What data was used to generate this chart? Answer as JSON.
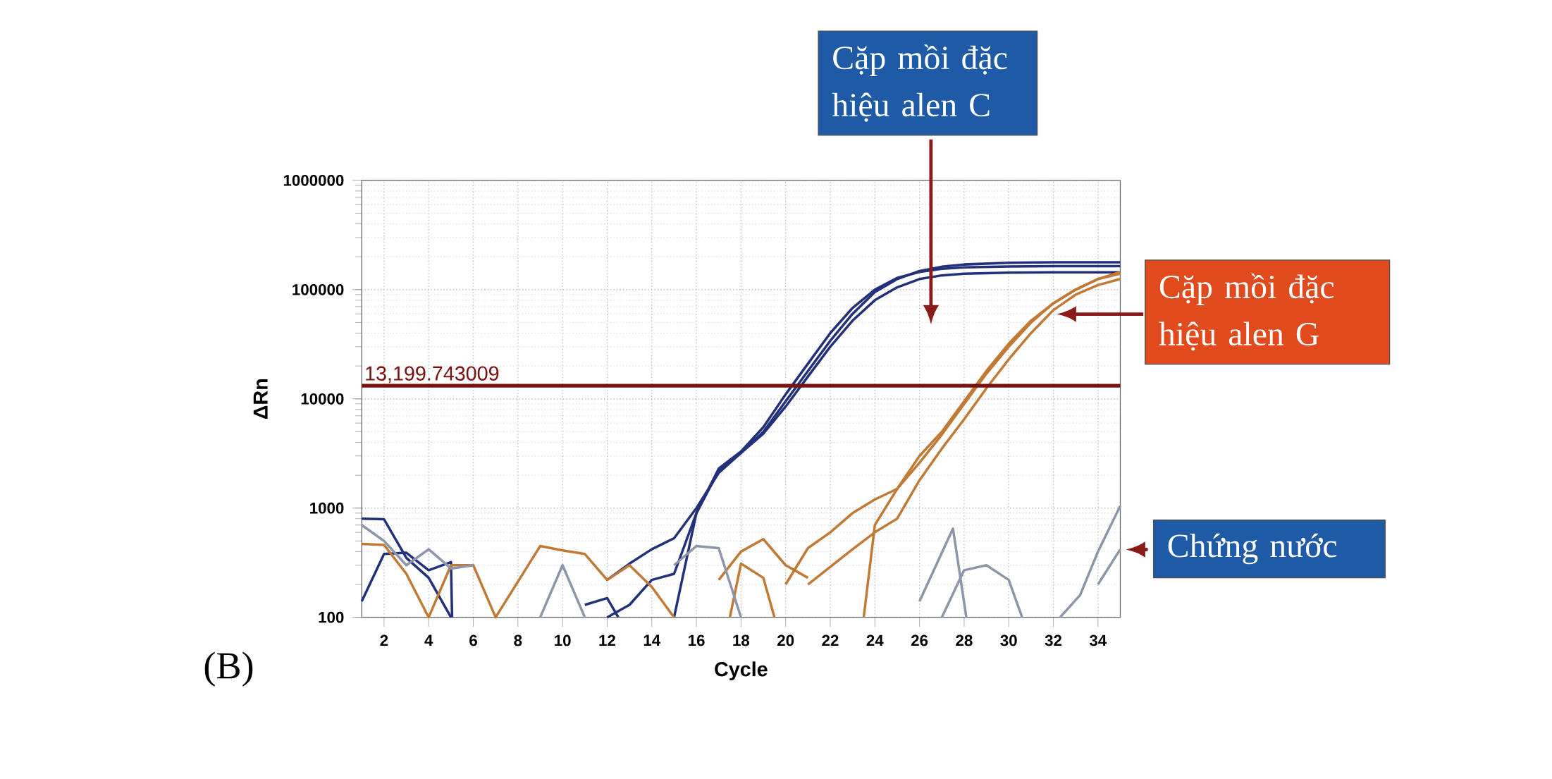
{
  "chart_data": {
    "type": "line",
    "xlabel": "Cycle",
    "ylabel": "ΔRn",
    "log": "y",
    "grid": true,
    "xlim": [
      1,
      35
    ],
    "xticks": [
      2,
      4,
      6,
      8,
      10,
      12,
      14,
      16,
      18,
      20,
      22,
      24,
      26,
      28,
      30,
      32,
      34
    ],
    "ylim": [
      100,
      1000000
    ],
    "yticks": [
      100,
      1000,
      10000,
      100000,
      1000000
    ],
    "ref_lines": [
      {
        "axis": "y",
        "value": 13199.743009,
        "label": "13,199.743009",
        "color": "#7a1010"
      }
    ],
    "annotations": [
      "Cặp mồi đặc hiệu alen C",
      "Cặp mồi đặc hiệu alen G",
      "Chứng nước",
      "(B)"
    ],
    "series": [
      {
        "type": "line",
        "color": "#23307a",
        "x": [
          12,
          13,
          14,
          15,
          16,
          17,
          18,
          19,
          20,
          21,
          22,
          23,
          24,
          25,
          26,
          27,
          28,
          30,
          32,
          35
        ],
        "values": [
          220,
          310,
          420,
          530,
          1000,
          2100,
          3200,
          5000,
          9500,
          18000,
          34000,
          60000,
          95000,
          125000,
          148000,
          162000,
          170000,
          176000,
          178000,
          178000
        ]
      },
      {
        "type": "line",
        "color": "#23307a",
        "x": [
          15,
          16,
          17,
          18,
          19,
          20,
          21,
          22,
          23,
          24,
          25,
          26,
          27,
          28,
          30,
          32,
          35
        ],
        "values": [
          100,
          900,
          2300,
          3300,
          5500,
          11000,
          21000,
          40000,
          68000,
          100000,
          128000,
          145000,
          155000,
          160000,
          163000,
          164000,
          164000
        ]
      },
      {
        "type": "line",
        "color": "#23307a",
        "x": [
          12,
          13,
          14,
          15,
          16,
          17,
          18,
          19,
          20,
          21,
          22,
          23,
          24,
          25,
          26,
          27,
          28,
          30,
          32,
          35
        ],
        "values": [
          100,
          130,
          220,
          250,
          900,
          2200,
          3200,
          4800,
          8500,
          16000,
          30000,
          52000,
          80000,
          105000,
          125000,
          135000,
          140000,
          143000,
          144000,
          144000
        ]
      },
      {
        "type": "line",
        "color": "#23307a",
        "x": [
          1,
          2,
          3,
          4,
          5
        ],
        "values": [
          800,
          790,
          350,
          230,
          100
        ]
      },
      {
        "type": "line",
        "color": "#23307a",
        "x": [
          1,
          2,
          3,
          4,
          5,
          5.05
        ],
        "values": [
          140,
          380,
          390,
          270,
          320,
          100
        ]
      },
      {
        "type": "line",
        "color": "#23307a",
        "x": [
          11,
          12,
          12.5
        ],
        "values": [
          130,
          150,
          100
        ]
      },
      {
        "type": "line",
        "color": "#c07a35",
        "x": [
          20,
          21,
          22,
          23,
          24,
          25,
          26,
          27,
          28,
          29,
          30,
          31,
          32,
          33,
          34,
          35
        ],
        "values": [
          200,
          430,
          600,
          900,
          1200,
          1500,
          3000,
          5000,
          9500,
          18000,
          32000,
          52000,
          75000,
          100000,
          125000,
          145000
        ]
      },
      {
        "type": "line",
        "color": "#c07a35",
        "x": [
          23.5,
          24,
          25,
          26,
          27,
          28,
          29,
          30,
          31,
          32,
          33,
          34,
          35
        ],
        "values": [
          100,
          700,
          1500,
          2600,
          4700,
          9000,
          17000,
          30000,
          50000,
          75000,
          100000,
          125000,
          140000
        ]
      },
      {
        "type": "line",
        "color": "#c07a35",
        "x": [
          21,
          22,
          23,
          24,
          25,
          26,
          27,
          28,
          29,
          30,
          31,
          32,
          33,
          34,
          35
        ],
        "values": [
          200,
          290,
          420,
          600,
          800,
          1800,
          3500,
          6500,
          12500,
          23000,
          40000,
          65000,
          90000,
          110000,
          125000
        ]
      },
      {
        "type": "line",
        "color": "#c07a35",
        "x": [
          1,
          2,
          3,
          4,
          5,
          6,
          7,
          9,
          10,
          11,
          12,
          13,
          14,
          15
        ],
        "values": [
          470,
          460,
          250,
          100,
          300,
          300,
          100,
          450,
          410,
          380,
          220,
          300,
          190,
          100
        ]
      },
      {
        "type": "line",
        "color": "#c07a35",
        "x": [
          17,
          18,
          19,
          20,
          21
        ],
        "values": [
          220,
          400,
          520,
          300,
          230
        ]
      },
      {
        "type": "line",
        "color": "#c07a35",
        "x": [
          17.5,
          18,
          19,
          19.5
        ],
        "values": [
          100,
          310,
          230,
          100
        ]
      },
      {
        "type": "line",
        "color": "#8c96a8",
        "x": [
          26,
          27.5,
          28.1
        ],
        "values": [
          140,
          650,
          100
        ]
      },
      {
        "type": "line",
        "color": "#8c96a8",
        "x": [
          27,
          28,
          29,
          30,
          30.6
        ],
        "values": [
          100,
          270,
          300,
          220,
          100
        ]
      },
      {
        "type": "line",
        "color": "#8c96a8",
        "x": [
          32.3,
          33.2,
          34,
          35
        ],
        "values": [
          100,
          160,
          400,
          1050
        ]
      },
      {
        "type": "line",
        "color": "#8c96a8",
        "x": [
          34,
          35
        ],
        "values": [
          200,
          420
        ]
      },
      {
        "type": "line",
        "color": "#8c96a8",
        "x": [
          1,
          2,
          3,
          4,
          5,
          6
        ],
        "values": [
          700,
          500,
          300,
          420,
          280,
          300
        ]
      },
      {
        "type": "line",
        "color": "#8c96a8",
        "x": [
          9,
          10,
          11
        ],
        "values": [
          100,
          300,
          100
        ]
      },
      {
        "type": "line",
        "color": "#8c96a8",
        "x": [
          15,
          16,
          17,
          18
        ],
        "values": [
          300,
          450,
          430,
          100
        ]
      }
    ]
  }
}
